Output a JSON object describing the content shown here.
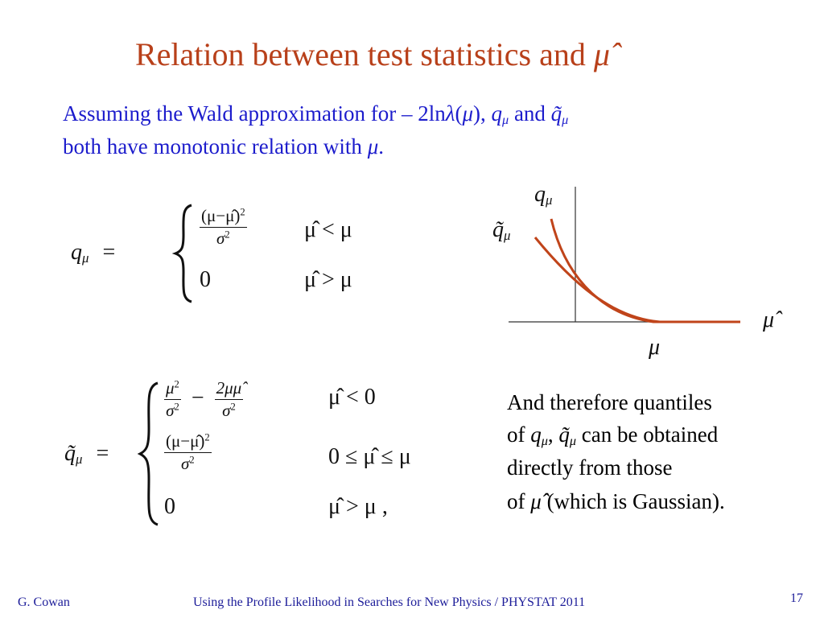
{
  "title": {
    "text": "Relation between test statistics and",
    "symbol": "μ̂"
  },
  "intro": {
    "line1": [
      "Assuming the Wald approximation for – 2ln",
      "λ",
      "(",
      "μ",
      "), ",
      "q",
      "μ",
      " and ",
      "q̃",
      "μ"
    ],
    "line2": [
      "both have monotonic relation with ",
      "μ",
      "."
    ]
  },
  "q_def": {
    "lhs": [
      "q",
      "μ",
      "="
    ],
    "case1": {
      "num": [
        "(μ−μ̂)",
        "2"
      ],
      "den": [
        "σ",
        "2"
      ],
      "cond": "μ̂ < μ"
    },
    "case2": {
      "value": "0",
      "cond": "μ̂ > μ"
    }
  },
  "qtilde_def": {
    "lhs": [
      "q̃",
      "μ",
      "="
    ],
    "case1": {
      "frac1_num": [
        "μ",
        "2"
      ],
      "frac1_den": [
        "σ",
        "2"
      ],
      "minus": "−",
      "frac2_num": "2μμ̂",
      "frac2_den": [
        "σ",
        "2"
      ],
      "cond": "μ̂ < 0"
    },
    "case2": {
      "num": [
        "(μ−μ̂)",
        "2"
      ],
      "den": [
        "σ",
        "2"
      ],
      "cond": "0 ≤ μ̂ ≤ μ"
    },
    "case3": {
      "value": "0",
      "cond": "μ̂ > μ ,"
    }
  },
  "graph": {
    "y_label": [
      "q",
      "μ"
    ],
    "y2_label": [
      "q̃",
      "μ"
    ],
    "x_label": "μ̂",
    "x_marker": "μ"
  },
  "conclusion": {
    "line1": "And therefore quantiles",
    "line2": [
      "of ",
      "q",
      "μ",
      ", ",
      "q̃",
      "μ",
      " can be obtained"
    ],
    "line3": "directly from those",
    "line4": [
      "of ",
      "μ̂",
      " (which is Gaussian)."
    ]
  },
  "footer": {
    "author": "G. Cowan",
    "talk": "Using the Profile Likelihood in Searches for New Physics / PHYSTAT 2011",
    "page": "17"
  }
}
